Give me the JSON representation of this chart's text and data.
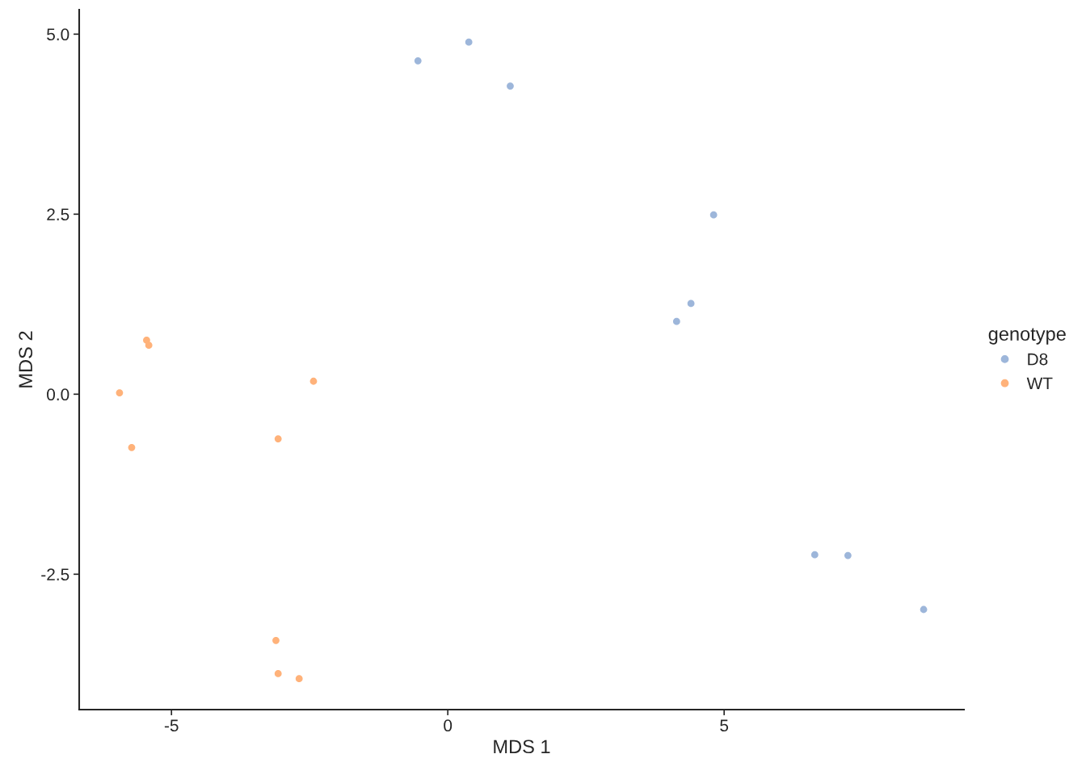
{
  "chart_data": {
    "type": "scatter",
    "xlabel": "MDS 1",
    "ylabel": "MDS 2",
    "legend_title": "genotype",
    "legend": "right",
    "grid": false,
    "marker": "circle",
    "xlim": [
      -6.67,
      9.34
    ],
    "xticks": [
      -5,
      0,
      5
    ],
    "ylim": [
      -4.38,
      5.34
    ],
    "yticks": [
      {
        "value": -2.5,
        "label": "-2.5"
      },
      {
        "value": 0,
        "label": "0.0"
      },
      {
        "value": 2.5,
        "label": "2.5"
      },
      {
        "value": 5,
        "label": "5.0"
      }
    ],
    "series": [
      {
        "name": "D8",
        "color": "#9db6da",
        "x": [
          -0.54,
          0.38,
          1.13,
          4.81,
          4.4,
          4.14,
          6.64,
          7.24,
          8.61
        ],
        "values": [
          4.63,
          4.89,
          4.28,
          2.49,
          1.26,
          1.01,
          -2.23,
          -2.24,
          -2.99
        ]
      },
      {
        "name": "WT",
        "color": "#ffb27a",
        "x": [
          -5.45,
          -5.41,
          -5.94,
          -5.72,
          -2.43,
          -3.07,
          -3.11,
          -3.07,
          -2.69
        ],
        "values": [
          0.75,
          0.68,
          0.02,
          -0.74,
          0.18,
          -0.62,
          -3.42,
          -3.88,
          -3.95
        ]
      }
    ]
  }
}
